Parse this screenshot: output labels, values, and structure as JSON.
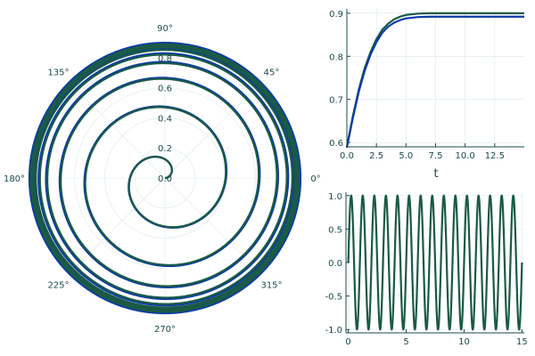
{
  "chart_data": [
    {
      "type": "line",
      "subtype": "polar",
      "theta_tick_labels": [
        "0°",
        "45°",
        "90°",
        "135°",
        "180°",
        "225°",
        "270°",
        "315°"
      ],
      "theta_ticks_deg": [
        0,
        45,
        90,
        135,
        180,
        225,
        270,
        315
      ],
      "r_tick_labels": [
        "0.0",
        "0.2",
        "0.4",
        "0.6",
        "0.8"
      ],
      "r_ticks": [
        0.0,
        0.2,
        0.4,
        0.6,
        0.8
      ],
      "rlim": [
        0,
        0.9
      ],
      "grid": true,
      "series": [
        {
          "color": "#0b3aa8",
          "description": "spiral r(t) = 0.9 * (1 - exp(-0.6 t)), theta = 2*pi*t, t from 0 to 15",
          "r_final": 0.9,
          "turns": 15
        },
        {
          "color": "#1a5a46",
          "description": "spiral r(t) = 0.89 * (1 - exp(-0.6 t)), theta = 2*pi*t, t from 0 to 15",
          "r_final": 0.89,
          "turns": 15
        }
      ]
    },
    {
      "type": "line",
      "xlabel": "t",
      "ylabel": "",
      "xlim": [
        0,
        15
      ],
      "ylim": [
        0.59,
        0.91
      ],
      "x_ticks": [
        0,
        2.5,
        5,
        7.5,
        10,
        12.5
      ],
      "x_tick_labels": [
        "0.0",
        "2.5",
        "5.0",
        "7.5",
        "10.0",
        "12.5"
      ],
      "y_ticks": [
        0.6,
        0.7,
        0.8,
        0.9
      ],
      "y_tick_labels": [
        "0.6",
        "0.7",
        "0.8",
        "0.9"
      ],
      "grid": true,
      "series": [
        {
          "color": "#1a5a46",
          "x": [
            0,
            0.5,
            1,
            1.5,
            2,
            2.5,
            3,
            3.5,
            4,
            4.5,
            5,
            6,
            7,
            8,
            10,
            12.5,
            15
          ],
          "y": [
            0.59,
            0.66,
            0.722,
            0.772,
            0.81,
            0.84,
            0.862,
            0.876,
            0.886,
            0.892,
            0.896,
            0.899,
            0.9,
            0.9,
            0.9,
            0.9,
            0.9
          ]
        },
        {
          "color": "#0b3aa8",
          "x": [
            0,
            0.5,
            1,
            1.5,
            2,
            2.5,
            3,
            3.5,
            4,
            4.5,
            5,
            6,
            7,
            8,
            10,
            12.5,
            15
          ],
          "y": [
            0.588,
            0.656,
            0.717,
            0.766,
            0.804,
            0.833,
            0.855,
            0.869,
            0.878,
            0.884,
            0.888,
            0.891,
            0.892,
            0.892,
            0.892,
            0.892,
            0.892
          ]
        }
      ]
    },
    {
      "type": "line",
      "xlim": [
        -0.2,
        15.2
      ],
      "ylim": [
        -1.05,
        1.05
      ],
      "x_ticks": [
        0,
        5,
        10,
        15
      ],
      "x_tick_labels": [
        "0",
        "5",
        "10",
        "15"
      ],
      "y_ticks": [
        -1.0,
        -0.5,
        0.0,
        0.5,
        1.0
      ],
      "y_tick_labels": [
        "-1.0",
        "-0.5",
        "0.0",
        "0.5",
        "1.0"
      ],
      "grid": true,
      "series": [
        {
          "color": "#1a5a46",
          "description": "y = sin(2*pi*t), t from 0 to 15",
          "frequency": 1,
          "amplitude": 1,
          "x_range": [
            0,
            15
          ]
        }
      ]
    }
  ]
}
